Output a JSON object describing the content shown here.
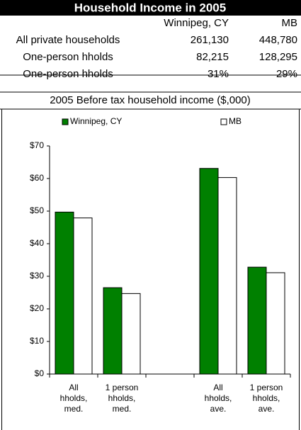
{
  "table": {
    "title": "Household Income in 2005",
    "columns": [
      "Winnipeg, CY",
      "MB"
    ],
    "rows": [
      {
        "label": "All private households",
        "values": [
          "261,130",
          "448,780"
        ]
      },
      {
        "label": "One-person hholds",
        "values": [
          "82,215",
          "128,295"
        ]
      },
      {
        "label": "One-person hholds",
        "values": [
          "31%",
          "29%"
        ]
      }
    ]
  },
  "chart_data": {
    "type": "bar",
    "title": "2005 Before tax household income ($,000)",
    "categories": [
      [
        "All",
        "hholds,",
        "med."
      ],
      [
        "1 person",
        "hholds,",
        "med."
      ],
      null,
      [
        "All",
        "hholds,",
        "ave."
      ],
      [
        "1 person",
        "hholds,",
        "ave."
      ]
    ],
    "series": [
      {
        "name": "Winnipeg, CY",
        "color": "#008000",
        "values": [
          49.7,
          26.5,
          null,
          63.1,
          32.8
        ]
      },
      {
        "name": "MB",
        "color": "#ffffff",
        "values": [
          47.9,
          24.7,
          null,
          60.3,
          31.1
        ]
      }
    ],
    "ylim": [
      0,
      70
    ],
    "yticks": [
      {
        "value": 0,
        "label": "$0"
      },
      {
        "value": 10,
        "label": "$10"
      },
      {
        "value": 20,
        "label": "$20"
      },
      {
        "value": 30,
        "label": "$30"
      },
      {
        "value": 40,
        "label": "$40"
      },
      {
        "value": 50,
        "label": "$50"
      },
      {
        "value": 60,
        "label": "$60"
      },
      {
        "value": 70,
        "label": "$70"
      }
    ],
    "legend": "top"
  }
}
